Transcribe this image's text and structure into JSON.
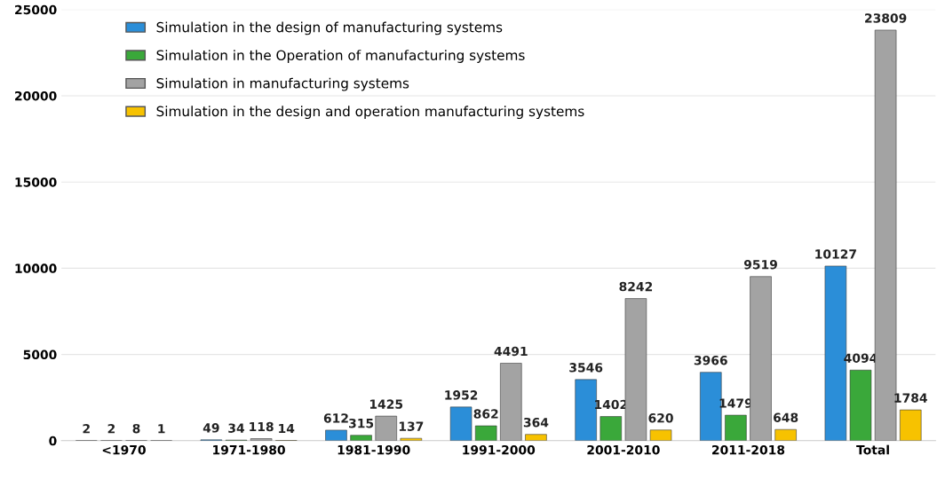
{
  "chart_data": {
    "type": "bar",
    "categories": [
      "<1970",
      "1971-1980",
      "1981-1990",
      "1991-2000",
      "2001-2010",
      "2011-2018",
      "Total"
    ],
    "series": [
      {
        "name": "Simulation in the design of manufacturing systems",
        "color": "#2b8ed8",
        "values": [
          2,
          49,
          612,
          1952,
          3546,
          3966,
          10127
        ]
      },
      {
        "name": "Simulation in the Operation of manufacturing systems",
        "color": "#3aa83a",
        "values": [
          2,
          34,
          315,
          862,
          1402,
          1479,
          4094
        ]
      },
      {
        "name": "Simulation in manufacturing systems",
        "color": "#a3a3a3",
        "values": [
          8,
          118,
          1425,
          4491,
          8242,
          9519,
          23809
        ]
      },
      {
        "name": "Simulation in the design and operation manufacturing systems",
        "color": "#f7c200",
        "values": [
          1,
          14,
          137,
          364,
          620,
          648,
          1784
        ]
      }
    ],
    "ylim": [
      0,
      25000
    ],
    "yticks": [
      0,
      5000,
      10000,
      15000,
      20000,
      25000
    ],
    "grid": "y",
    "legend": "top left",
    "data_labels": true
  }
}
